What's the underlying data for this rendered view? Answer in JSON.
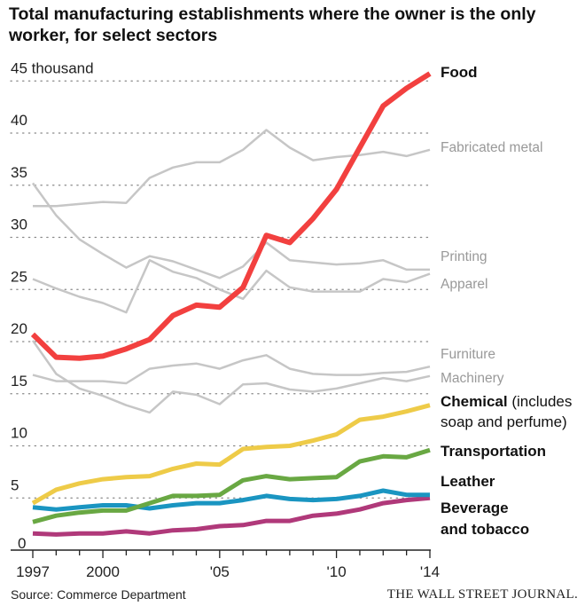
{
  "chart_data": {
    "type": "line",
    "title": "Total manufacturing establishments where the owner is the only worker, for select sectors",
    "xlabel": "",
    "ylabel": "thousand",
    "x": [
      1997,
      1998,
      1999,
      2000,
      2001,
      2002,
      2003,
      2004,
      2005,
      2006,
      2007,
      2008,
      2009,
      2010,
      2011,
      2012,
      2013,
      2014
    ],
    "xlim": [
      1997,
      2014
    ],
    "ylim": [
      0,
      45
    ],
    "x_tick_labels": [
      {
        "x": 1997,
        "label": "1997"
      },
      {
        "x": 2000,
        "label": "2000"
      },
      {
        "x": 2005,
        "label": "'05"
      },
      {
        "x": 2010,
        "label": "'10"
      },
      {
        "x": 2014,
        "label": "'14"
      }
    ],
    "y_tick_labels": [
      {
        "y": 45,
        "label": "45 thousand"
      },
      {
        "y": 40,
        "label": "40"
      },
      {
        "y": 35,
        "label": "35"
      },
      {
        "y": 30,
        "label": "30"
      },
      {
        "y": 25,
        "label": "25"
      },
      {
        "y": 20,
        "label": "20"
      },
      {
        "y": 15,
        "label": "15"
      },
      {
        "y": 10,
        "label": "10"
      },
      {
        "y": 5,
        "label": "5"
      },
      {
        "y": 0,
        "label": "0"
      }
    ],
    "grid": "dotted horizontal",
    "legend": "direct labels at right",
    "series": [
      {
        "name": "Fabricated metal",
        "label": "Fabricated metal",
        "bold": false,
        "color": "#c6c6c6",
        "values": [
          33.0,
          33.0,
          33.2,
          33.4,
          33.3,
          35.7,
          36.7,
          37.2,
          37.2,
          38.4,
          40.3,
          38.6,
          37.4,
          37.7,
          37.9,
          38.2,
          37.8,
          38.4
        ]
      },
      {
        "name": "Printing",
        "label": "Printing",
        "bold": false,
        "color": "#c6c6c6",
        "values": [
          35.2,
          32.1,
          29.8,
          28.4,
          27.1,
          28.2,
          27.7,
          26.9,
          26.1,
          27.2,
          29.5,
          27.8,
          27.6,
          27.4,
          27.5,
          27.8,
          26.9,
          26.9
        ]
      },
      {
        "name": "Apparel",
        "label": "Apparel",
        "bold": false,
        "color": "#c6c6c6",
        "values": [
          26.0,
          25.1,
          24.3,
          23.7,
          22.8,
          27.8,
          26.7,
          26.1,
          25.0,
          24.1,
          26.8,
          25.2,
          24.8,
          24.8,
          24.8,
          26.0,
          25.7,
          26.5
        ]
      },
      {
        "name": "Furniture",
        "label": "Furniture",
        "bold": false,
        "color": "#c6c6c6",
        "values": [
          16.8,
          16.2,
          16.2,
          16.2,
          16.0,
          17.4,
          17.7,
          17.9,
          17.4,
          18.2,
          18.7,
          17.4,
          16.9,
          16.8,
          16.8,
          17.0,
          17.1,
          17.6
        ]
      },
      {
        "name": "Machinery",
        "label": "Machinery",
        "bold": false,
        "color": "#c6c6c6",
        "values": [
          20.1,
          16.9,
          15.5,
          14.8,
          13.9,
          13.2,
          15.2,
          14.9,
          14.0,
          15.9,
          16.0,
          15.4,
          15.2,
          15.5,
          16.0,
          16.5,
          16.2,
          16.7
        ]
      },
      {
        "name": "Beverage and tobacco",
        "label": "Beverage",
        "label2": "and tobacco",
        "bold": true,
        "color": "#b0397a",
        "values": [
          1.6,
          1.5,
          1.6,
          1.6,
          1.8,
          1.6,
          1.9,
          2.0,
          2.3,
          2.4,
          2.8,
          2.8,
          3.3,
          3.5,
          3.9,
          4.5,
          4.8,
          5.0
        ]
      },
      {
        "name": "Leather",
        "label": "Leather",
        "bold": true,
        "color": "#1a95c1",
        "values": [
          4.1,
          3.9,
          4.1,
          4.3,
          4.3,
          4.0,
          4.3,
          4.5,
          4.5,
          4.8,
          5.2,
          4.9,
          4.8,
          4.9,
          5.2,
          5.7,
          5.3,
          5.3
        ]
      },
      {
        "name": "Transportation",
        "label": "Transportation",
        "bold": true,
        "color": "#69a843",
        "values": [
          2.7,
          3.3,
          3.6,
          3.8,
          3.8,
          4.5,
          5.2,
          5.2,
          5.3,
          6.7,
          7.1,
          6.8,
          6.9,
          7.0,
          8.5,
          9.0,
          8.9,
          9.6
        ]
      },
      {
        "name": "Chemical (includes soap and perfume)",
        "label": "Chemical",
        "label_suffix": " (includes",
        "label2": "soap and perfume)",
        "bold": true,
        "color": "#eecb48",
        "values": [
          4.5,
          5.8,
          6.4,
          6.8,
          7.0,
          7.1,
          7.8,
          8.3,
          8.2,
          9.7,
          9.9,
          10.0,
          10.5,
          11.1,
          12.5,
          12.8,
          13.3,
          13.9
        ]
      },
      {
        "name": "Food",
        "label": "Food",
        "bold": true,
        "color": "#f2403f",
        "values": [
          20.7,
          18.5,
          18.4,
          18.6,
          19.3,
          20.2,
          22.5,
          23.5,
          23.3,
          25.2,
          30.2,
          29.5,
          31.8,
          34.6,
          38.6,
          42.6,
          44.3,
          45.7
        ]
      }
    ]
  },
  "source": "Source: Commerce Department",
  "publisher": "THE WALL STREET JOURNAL."
}
